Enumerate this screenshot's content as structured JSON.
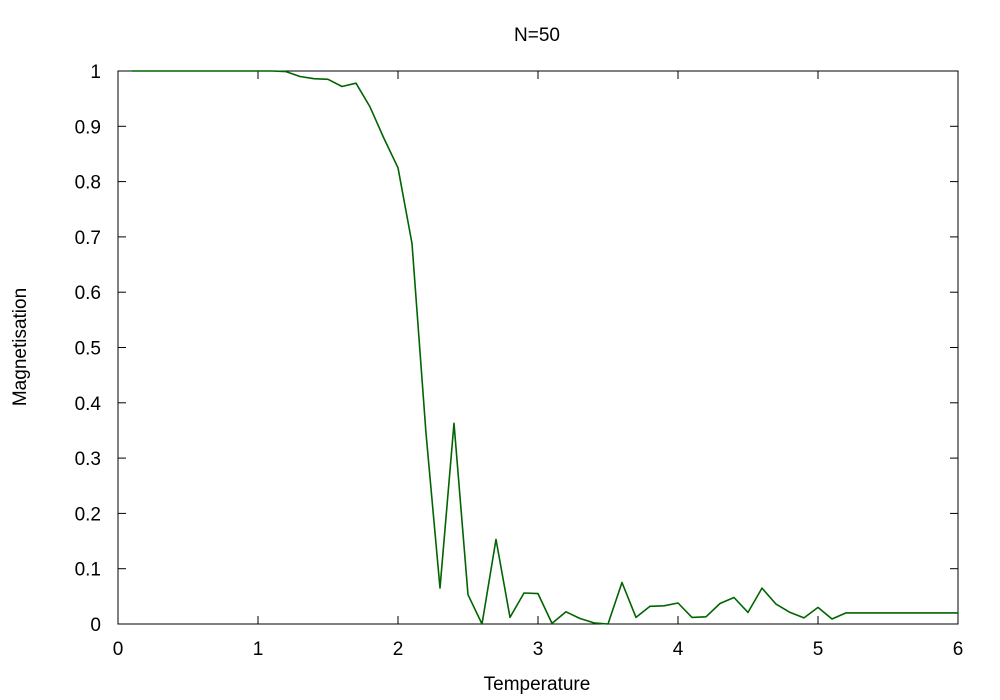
{
  "chart_data": {
    "type": "line",
    "title": "N=50",
    "xlabel": "Temperature",
    "ylabel": "Magnetisation",
    "xlim": [
      0,
      6
    ],
    "ylim": [
      0,
      1
    ],
    "xticks": [
      0,
      1,
      2,
      3,
      4,
      5,
      6
    ],
    "yticks": [
      0,
      0.1,
      0.2,
      0.3,
      0.4,
      0.5,
      0.6,
      0.7,
      0.8,
      0.9,
      1
    ],
    "ytick_labels": [
      "0",
      "0.1",
      "0.2",
      "0.3",
      "0.4",
      "0.5",
      "0.6",
      "0.7",
      "0.8",
      "0.9",
      "1"
    ],
    "grid": false,
    "series": [
      {
        "color": "#006400",
        "x": [
          0.1,
          0.2,
          0.3,
          0.4,
          0.5,
          0.6,
          0.7,
          0.8,
          0.9,
          1.0,
          1.1,
          1.2,
          1.3,
          1.4,
          1.5,
          1.6,
          1.7,
          1.8,
          1.9,
          2.0,
          2.1,
          2.2,
          2.3,
          2.4,
          2.5,
          2.6,
          2.7,
          2.8,
          2.9,
          3.0,
          3.1,
          3.2,
          3.3,
          3.4,
          3.5,
          3.6,
          3.7,
          3.8,
          3.9,
          4.0,
          4.1,
          4.2,
          4.3,
          4.4,
          4.5,
          4.6,
          4.7,
          4.8,
          4.9,
          5.0,
          5.1,
          5.2,
          5.3,
          5.4,
          5.5,
          5.6,
          5.7,
          5.8,
          5.9,
          6.0
        ],
        "y": [
          1.0,
          1.0,
          1.0,
          1.0,
          1.0,
          1.0,
          1.0,
          1.0,
          1.0,
          1.0,
          1.0,
          0.999,
          0.99,
          0.986,
          0.985,
          0.972,
          0.978,
          0.935,
          0.878,
          0.825,
          0.688,
          0.345,
          0.065,
          0.363,
          0.053,
          0.0,
          0.153,
          0.012,
          0.056,
          0.055,
          0.001,
          0.022,
          0.01,
          0.002,
          0.0,
          0.075,
          0.012,
          0.032,
          0.033,
          0.038,
          0.012,
          0.013,
          0.037,
          0.048,
          0.021,
          0.065,
          0.036,
          0.021,
          0.011,
          0.03,
          0.009,
          0.02,
          0.02,
          0.02,
          0.02,
          0.02,
          0.02,
          0.02,
          0.02,
          0.02
        ]
      }
    ]
  }
}
